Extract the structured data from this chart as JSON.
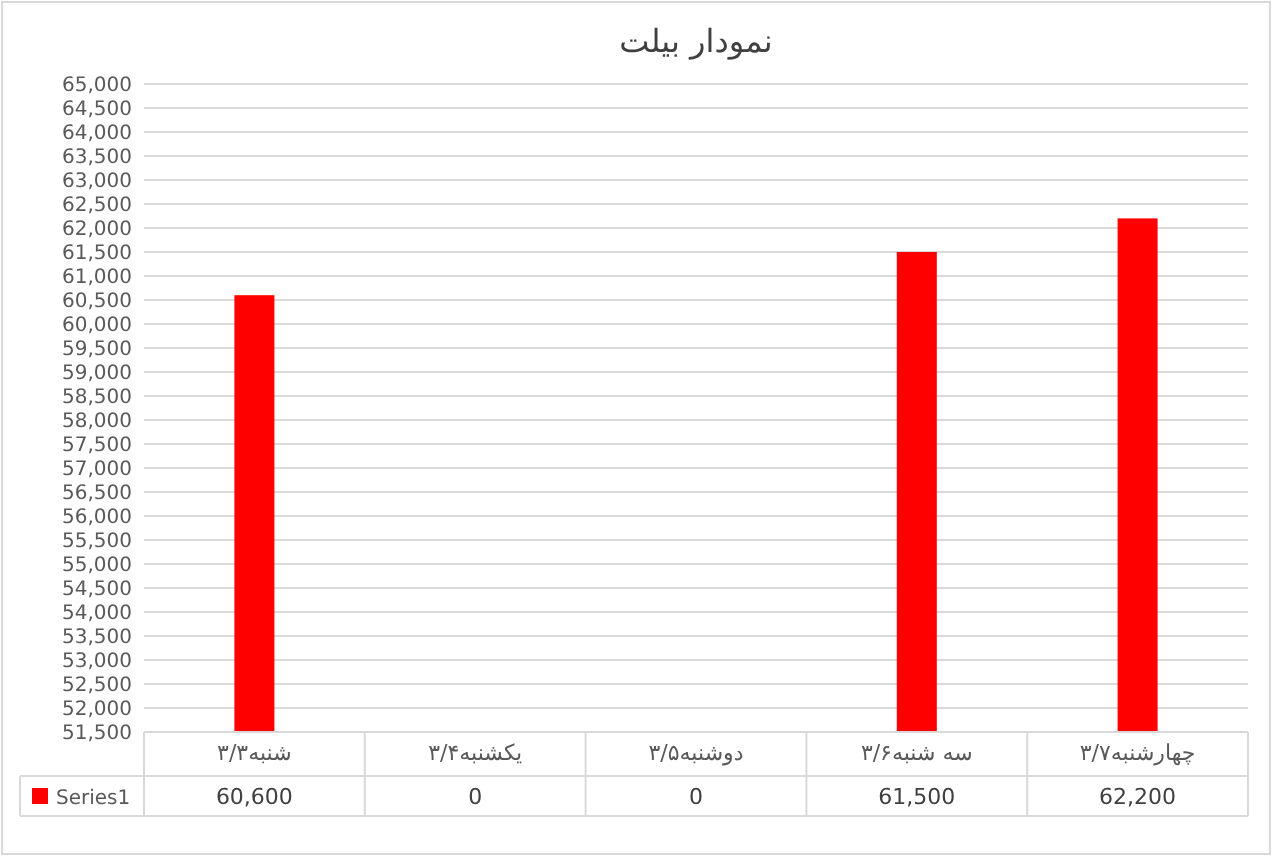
{
  "chart_data": {
    "type": "bar",
    "title": "نمودار بیلت",
    "categories": [
      "شنبه۳/۳",
      "یکشنبه۳/۴",
      "دوشنبه۳/۵",
      "سه شنبه۳/۶",
      "چهارشنبه۳/۷"
    ],
    "series": [
      {
        "name": "Series1",
        "color": "#ff0000",
        "values": [
          60600,
          null,
          null,
          61500,
          62200
        ],
        "value_labels": [
          "60,600",
          "0",
          "0",
          "61,500",
          "62,200"
        ]
      }
    ],
    "ylim": [
      51500,
      65000
    ],
    "yticks": [
      {
        "value": 51500,
        "label": "51,500"
      },
      {
        "value": 52000,
        "label": "52,000"
      },
      {
        "value": 52500,
        "label": "52,500"
      },
      {
        "value": 53000,
        "label": "53,000"
      },
      {
        "value": 53500,
        "label": "53,500"
      },
      {
        "value": 54000,
        "label": "54,000"
      },
      {
        "value": 54500,
        "label": "54,500"
      },
      {
        "value": 55000,
        "label": "55,000"
      },
      {
        "value": 55500,
        "label": "55,500"
      },
      {
        "value": 56000,
        "label": "56,000"
      },
      {
        "value": 56500,
        "label": "56,500"
      },
      {
        "value": 57000,
        "label": "57,000"
      },
      {
        "value": 57500,
        "label": "57,500"
      },
      {
        "value": 58000,
        "label": "58,000"
      },
      {
        "value": 58500,
        "label": "58,500"
      },
      {
        "value": 59000,
        "label": "59,000"
      },
      {
        "value": 59500,
        "label": "59,500"
      },
      {
        "value": 60000,
        "label": "60,000"
      },
      {
        "value": 60500,
        "label": "60,500"
      },
      {
        "value": 61000,
        "label": "61,000"
      },
      {
        "value": 61500,
        "label": "61,500"
      },
      {
        "value": 62000,
        "label": "62,000"
      },
      {
        "value": 62500,
        "label": "62,500"
      },
      {
        "value": 63000,
        "label": "63,000"
      },
      {
        "value": 63500,
        "label": "63,500"
      },
      {
        "value": 64000,
        "label": "64,000"
      },
      {
        "value": 64500,
        "label": "64,500"
      },
      {
        "value": 65000,
        "label": "65,000"
      }
    ],
    "grid": "y",
    "legend": "bottom"
  }
}
